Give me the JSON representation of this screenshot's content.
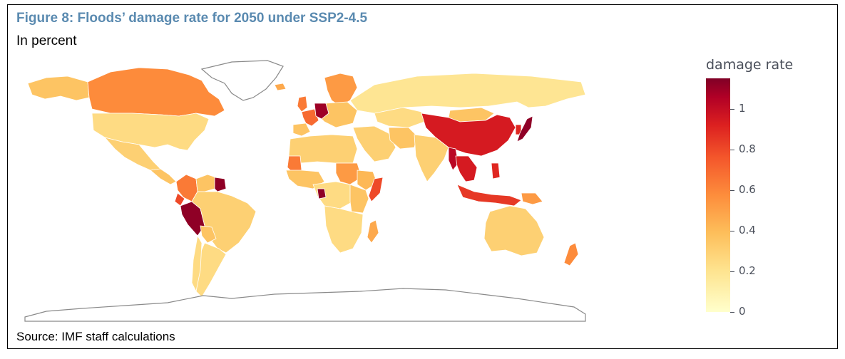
{
  "figure": {
    "title": "Figure 8: Floods’ damage rate for 2050 under SSP2-4.5",
    "subtitle": "In percent",
    "source": "Source: IMF staff calculations"
  },
  "legend": {
    "title": "damage rate",
    "ticks": [
      "0",
      "0.2",
      "0.4",
      "0.6",
      "0.8",
      "1"
    ],
    "min": 0,
    "max": 1.15
  },
  "colors": {
    "scale": [
      "#ffffcc",
      "#fee38e",
      "#fdbe5a",
      "#fd8d3c",
      "#f4572b",
      "#dc2020",
      "#b10026",
      "#800026"
    ],
    "border": "#ffffff",
    "nodata_outline": "#8a8a8a"
  },
  "regions": [
    {
      "name": "Canada",
      "rate": 0.5
    },
    {
      "name": "Alaska",
      "rate": 0.3
    },
    {
      "name": "United States",
      "rate": 0.2
    },
    {
      "name": "Mexico",
      "rate": 0.25
    },
    {
      "name": "Central America",
      "rate": 0.3
    },
    {
      "name": "Colombia",
      "rate": 0.55
    },
    {
      "name": "Venezuela",
      "rate": 0.3
    },
    {
      "name": "Guyana",
      "rate": 1.1
    },
    {
      "name": "Peru",
      "rate": 1.1
    },
    {
      "name": "Ecuador",
      "rate": 0.7
    },
    {
      "name": "Brazil",
      "rate": 0.25
    },
    {
      "name": "Bolivia",
      "rate": 0.3
    },
    {
      "name": "Argentina",
      "rate": 0.2
    },
    {
      "name": "Chile",
      "rate": 0.2
    },
    {
      "name": "Iceland",
      "rate": 0.4
    },
    {
      "name": "Scandinavia",
      "rate": 0.45
    },
    {
      "name": "United Kingdom",
      "rate": 0.55
    },
    {
      "name": "Western Europe",
      "rate": 0.6
    },
    {
      "name": "Germany",
      "rate": 1.05
    },
    {
      "name": "Iberia",
      "rate": 0.3
    },
    {
      "name": "Eastern Europe",
      "rate": 0.3
    },
    {
      "name": "Russia",
      "rate": 0.15
    },
    {
      "name": "Kazakhstan",
      "rate": 0.2
    },
    {
      "name": "Middle East",
      "rate": 0.25
    },
    {
      "name": "Iran",
      "rate": 0.3
    },
    {
      "name": "India",
      "rate": 0.25
    },
    {
      "name": "China",
      "rate": 0.85
    },
    {
      "name": "Mongolia",
      "rate": 0.3
    },
    {
      "name": "Japan",
      "rate": 1.1
    },
    {
      "name": "Korea",
      "rate": 0.8
    },
    {
      "name": "Myanmar",
      "rate": 0.95
    },
    {
      "name": "Southeast Asia",
      "rate": 0.85
    },
    {
      "name": "Indonesia",
      "rate": 0.75
    },
    {
      "name": "Philippines",
      "rate": 0.8
    },
    {
      "name": "Papua New Guinea",
      "rate": 0.45
    },
    {
      "name": "Australia",
      "rate": 0.25
    },
    {
      "name": "New Zealand",
      "rate": 0.5
    },
    {
      "name": "North Africa",
      "rate": 0.25
    },
    {
      "name": "Mali",
      "rate": 0.55
    },
    {
      "name": "West Africa",
      "rate": 0.3
    },
    {
      "name": "Sudan",
      "rate": 0.45
    },
    {
      "name": "Ethiopia",
      "rate": 0.35
    },
    {
      "name": "Somalia",
      "rate": 0.7
    },
    {
      "name": "Central Africa",
      "rate": 0.2
    },
    {
      "name": "Gabon",
      "rate": 1.1
    },
    {
      "name": "East Africa",
      "rate": 0.3
    },
    {
      "name": "Southern Africa",
      "rate": 0.2
    },
    {
      "name": "Madagascar",
      "rate": 0.4
    },
    {
      "name": "Greenland",
      "rate": null
    },
    {
      "name": "Antarctica",
      "rate": null
    }
  ]
}
